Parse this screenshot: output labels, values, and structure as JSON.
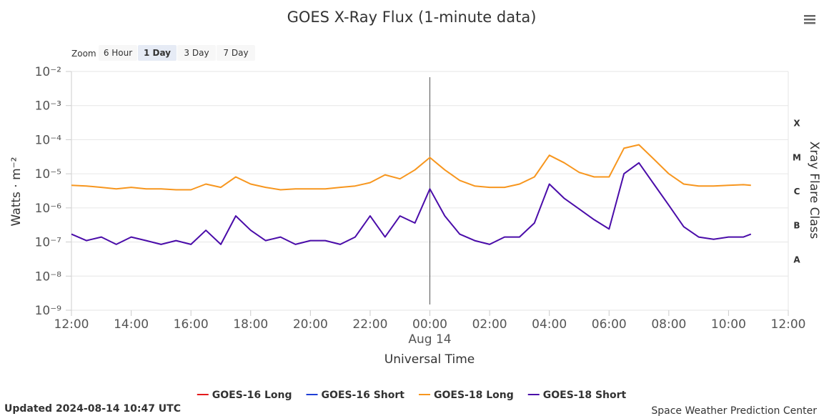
{
  "chart_data": {
    "type": "line",
    "title": "GOES X-Ray Flux (1-minute data)",
    "zoom": {
      "label": "Zoom",
      "buttons": [
        "6 Hour",
        "1 Day",
        "3 Day",
        "7 Day"
      ],
      "selected": 1
    },
    "x_label": "Universal Time",
    "y_label": "Watts · m⁻²",
    "y2_label": "Xray Flare Class",
    "log_y": true,
    "grid": true,
    "xlim": [
      0,
      24
    ],
    "xticks": [
      {
        "value": 0,
        "label": "12:00"
      },
      {
        "value": 2,
        "label": "14:00"
      },
      {
        "value": 4,
        "label": "16:00"
      },
      {
        "value": 6,
        "label": "18:00"
      },
      {
        "value": 8,
        "label": "20:00"
      },
      {
        "value": 10,
        "label": "22:00"
      },
      {
        "value": 12,
        "label": "00:00"
      },
      {
        "value": 14,
        "label": "02:00"
      },
      {
        "value": 16,
        "label": "04:00"
      },
      {
        "value": 18,
        "label": "06:00"
      },
      {
        "value": 20,
        "label": "08:00"
      },
      {
        "value": 22,
        "label": "10:00"
      },
      {
        "value": 24,
        "label": "12:00"
      }
    ],
    "annotation": {
      "x": 12,
      "text": "Aug 14"
    },
    "ylim": [
      1e-09,
      0.01
    ],
    "yticks": [
      {
        "value": 1e-09,
        "label": "10⁻⁹"
      },
      {
        "value": 1e-08,
        "label": "10⁻⁸"
      },
      {
        "value": 1e-07,
        "label": "10⁻⁷"
      },
      {
        "value": 1e-06,
        "label": "10⁻⁶"
      },
      {
        "value": 1e-05,
        "label": "10⁻⁵"
      },
      {
        "value": 0.0001,
        "label": "10⁻⁴"
      },
      {
        "value": 0.001,
        "label": "10⁻³"
      },
      {
        "value": 0.01,
        "label": "10⁻²"
      }
    ],
    "y2lim": [
      1e-09,
      0.01
    ],
    "y2ticks": [
      {
        "value": 0.000316,
        "label": "X"
      },
      {
        "value": 3.16e-05,
        "label": "M"
      },
      {
        "value": 3.16e-06,
        "label": "C"
      },
      {
        "value": 3.16e-07,
        "label": "B"
      },
      {
        "value": 3.16e-08,
        "label": "A"
      }
    ],
    "x": [
      0,
      0.5,
      1,
      1.5,
      2,
      2.5,
      3,
      3.5,
      4,
      4.5,
      5,
      5.5,
      6,
      6.5,
      7,
      7.5,
      8,
      8.5,
      9,
      9.5,
      10,
      10.5,
      11,
      11.5,
      12,
      12.5,
      13,
      13.5,
      14,
      14.5,
      15,
      15.5,
      16,
      16.5,
      17,
      17.5,
      18,
      18.5,
      19,
      19.5,
      20,
      20.5,
      21,
      21.5,
      22,
      22.5,
      22.75
    ],
    "series": [
      {
        "name": "GOES-16 Long",
        "color": "#e41a1c",
        "values": [
          null,
          null,
          null,
          null,
          null,
          null,
          null,
          null,
          null,
          null,
          null,
          null,
          null,
          null,
          null,
          null,
          null,
          null,
          null,
          null,
          null,
          null,
          null,
          null,
          null,
          null,
          null,
          null,
          null,
          null,
          null,
          null,
          null,
          null,
          null,
          null,
          null,
          null,
          null,
          null,
          null,
          null,
          null,
          null,
          null,
          null,
          null
        ]
      },
      {
        "name": "GOES-16 Short",
        "color": "#1f3fd6",
        "values": [
          null,
          null,
          null,
          null,
          null,
          null,
          null,
          null,
          null,
          null,
          null,
          null,
          null,
          null,
          null,
          null,
          null,
          null,
          null,
          null,
          null,
          null,
          null,
          null,
          null,
          null,
          null,
          null,
          null,
          null,
          null,
          null,
          null,
          null,
          null,
          null,
          null,
          null,
          null,
          null,
          null,
          null,
          null,
          null,
          null,
          null,
          null
        ]
      },
      {
        "name": "GOES-18 Long",
        "color": "#f7961e",
        "values": [
          4.6e-06,
          4.4e-06,
          4e-06,
          3.6e-06,
          4e-06,
          3.6e-06,
          3.6e-06,
          3.4e-06,
          3.4e-06,
          5e-06,
          4e-06,
          8.1e-06,
          5e-06,
          4e-06,
          3.4e-06,
          3.6e-06,
          3.6e-06,
          3.6e-06,
          4e-06,
          4.4e-06,
          5.5e-06,
          9.3e-06,
          7.1e-06,
          1.3e-05,
          3e-05,
          1.3e-05,
          6.4e-06,
          4.4e-06,
          4e-06,
          4e-06,
          5e-06,
          8.1e-06,
          3.5e-05,
          2.1e-05,
          1.1e-05,
          8.1e-06,
          8.1e-06,
          5.6e-05,
          7.1e-05,
          2.7e-05,
          1e-05,
          5e-06,
          4.4e-06,
          4.4e-06,
          4.6e-06,
          4.8e-06,
          4.6e-06
        ]
      },
      {
        "name": "GOES-18 Short",
        "color": "#4a0ca9",
        "values": [
          1.7e-07,
          1.1e-07,
          1.4e-07,
          8.5e-08,
          1.4e-07,
          1.1e-07,
          8.5e-08,
          1.1e-07,
          8.5e-08,
          2.2e-07,
          8.5e-08,
          5.8e-07,
          2.2e-07,
          1.1e-07,
          1.4e-07,
          8.5e-08,
          1.1e-07,
          1.1e-07,
          8.5e-08,
          1.4e-07,
          5.8e-07,
          1.4e-07,
          5.8e-07,
          3.6e-07,
          3.6e-06,
          5.8e-07,
          1.7e-07,
          1.1e-07,
          8.5e-08,
          1.4e-07,
          1.4e-07,
          3.6e-07,
          5e-06,
          1.9e-06,
          9.3e-07,
          4.5e-07,
          2.4e-07,
          1e-05,
          2.1e-05,
          5e-06,
          1.2e-06,
          2.8e-07,
          1.4e-07,
          1.2e-07,
          1.4e-07,
          1.4e-07,
          1.7e-07
        ]
      }
    ],
    "updated": "Updated 2024-08-14 10:47 UTC",
    "credit": "Space Weather Prediction Center"
  }
}
